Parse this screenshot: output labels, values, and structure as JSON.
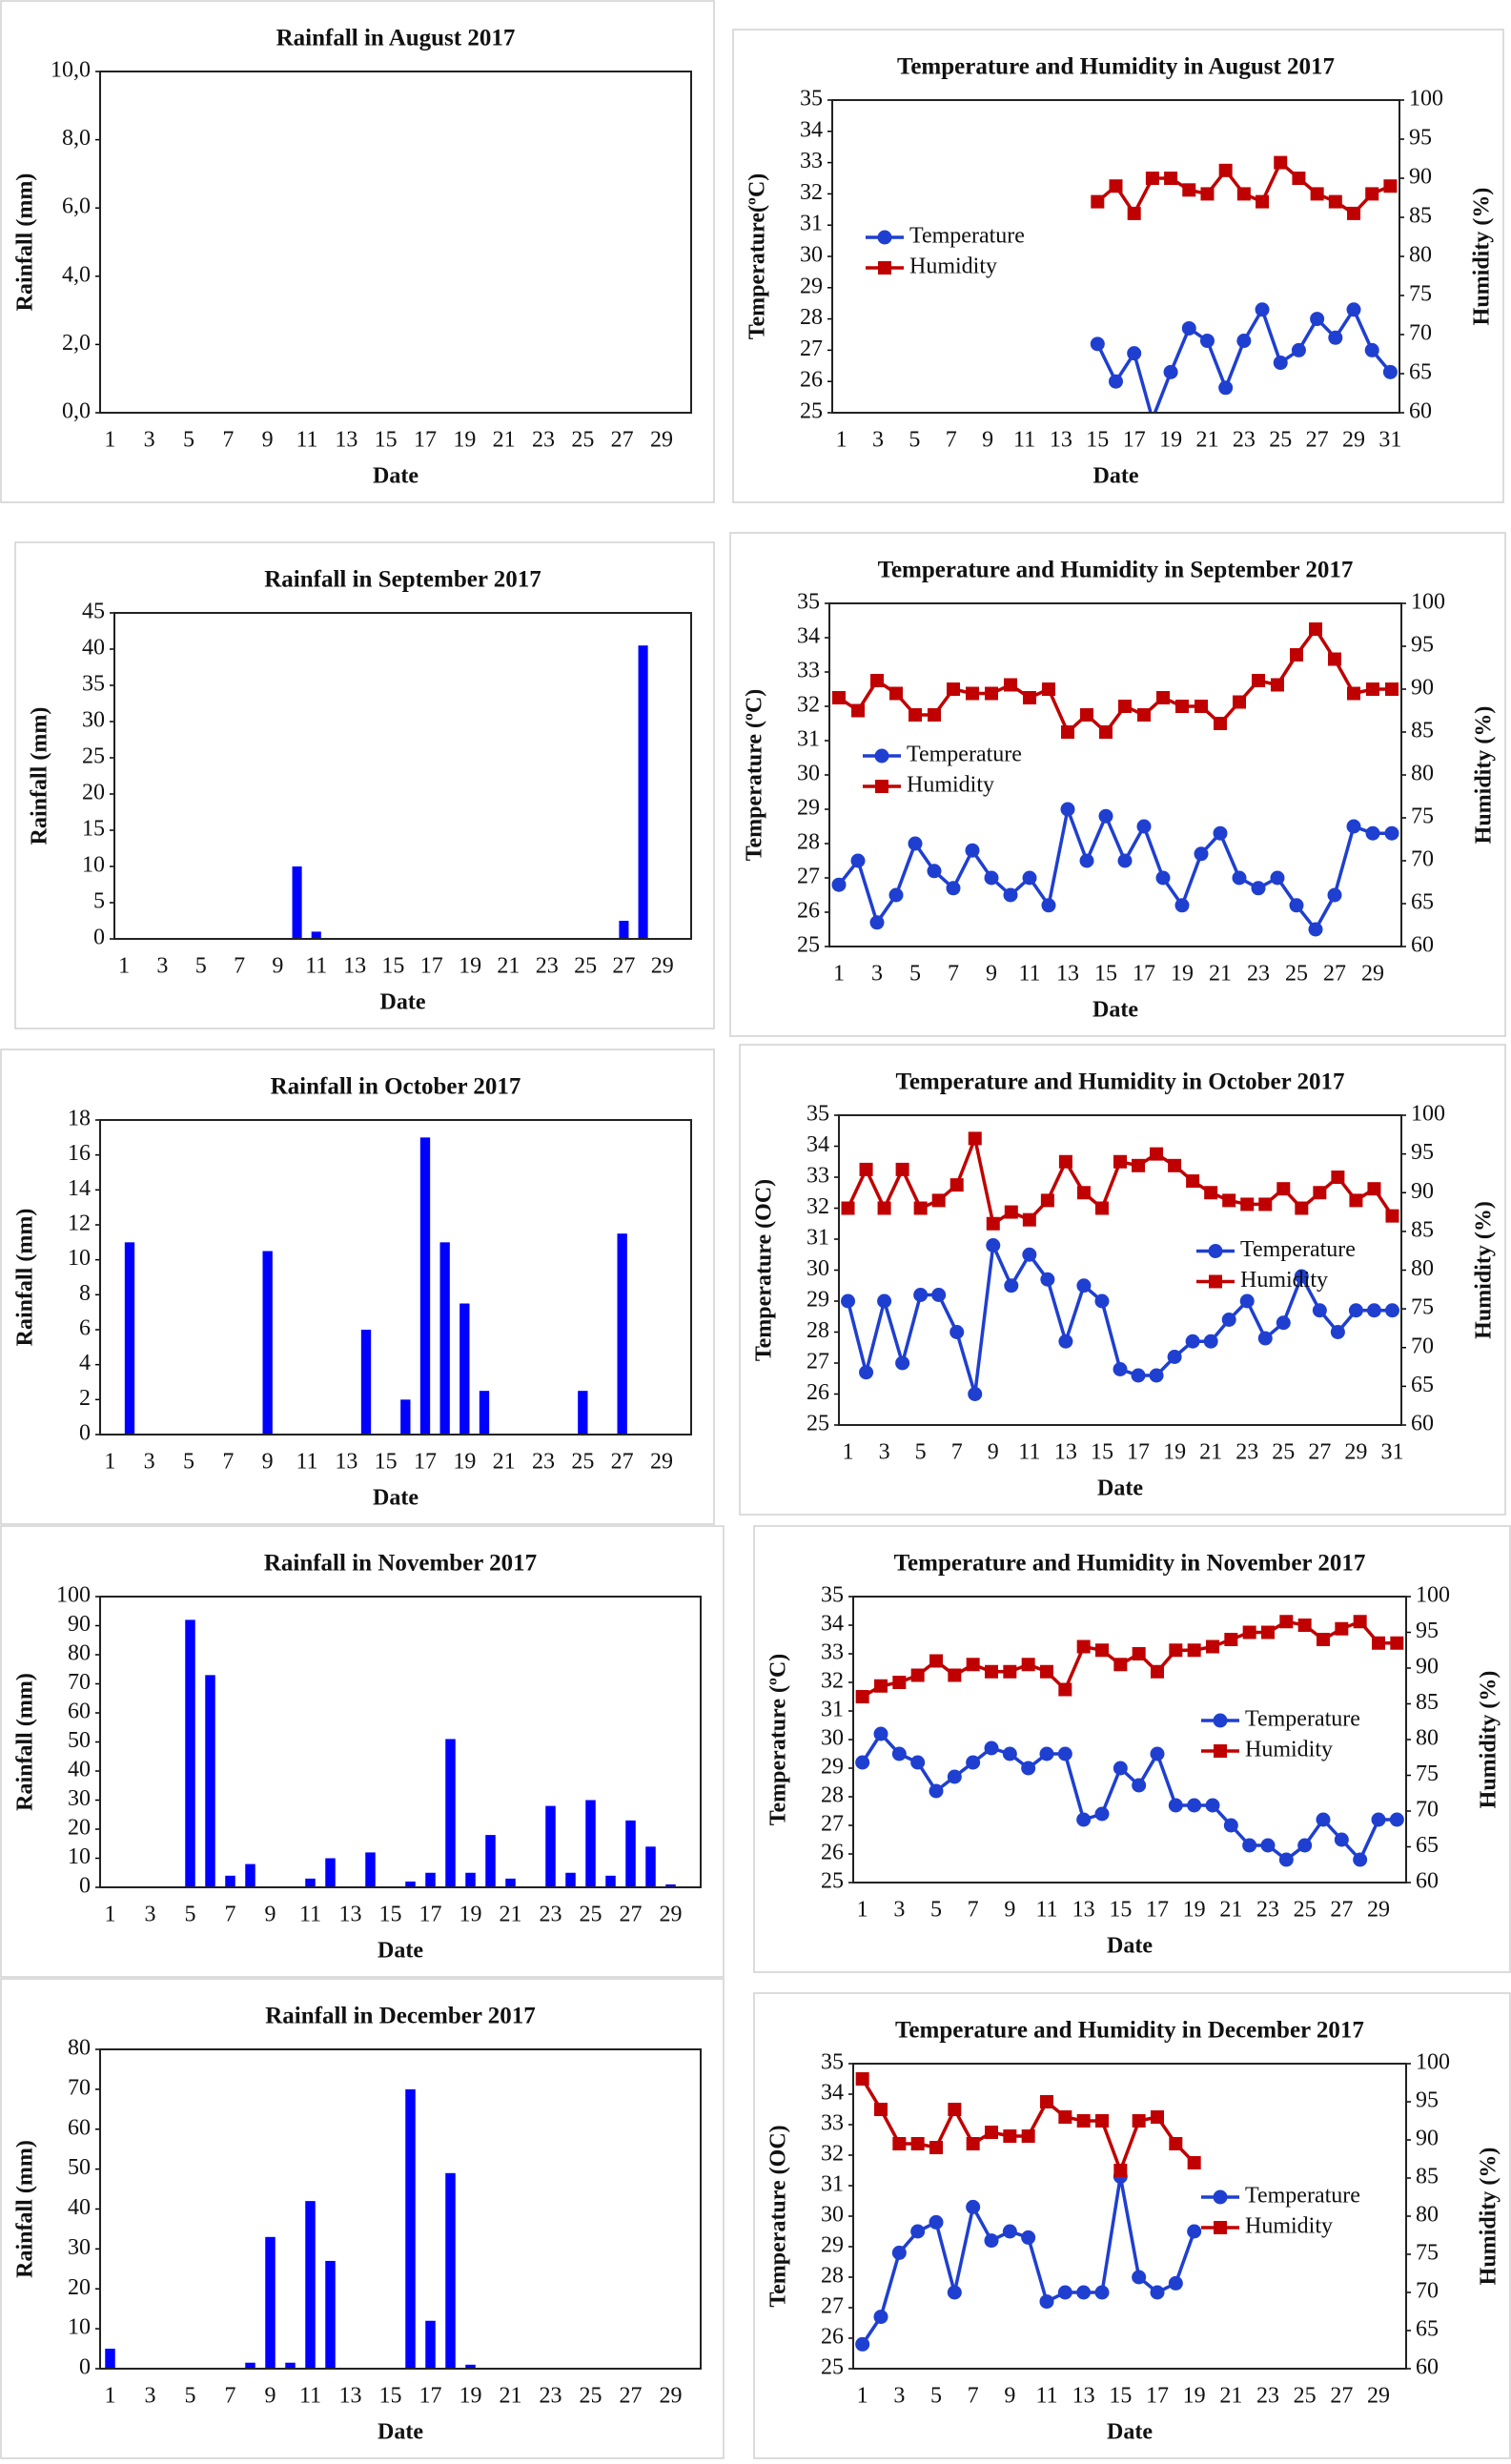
{
  "chart_data": [
    {
      "type": "bar",
      "title": "Rainfall  in August 2017",
      "x_label": "Date",
      "y_label": "Rainfall (mm)",
      "color": "#0000ff",
      "categories": [
        1,
        null,
        3,
        null,
        5,
        null,
        7,
        null,
        9,
        null,
        11,
        null,
        13,
        null,
        15,
        null,
        17,
        null,
        19,
        null,
        21,
        null,
        23,
        null,
        25,
        null,
        27,
        null,
        29,
        null
      ],
      "values": [
        0,
        0,
        0,
        0,
        0,
        0,
        0,
        0,
        0,
        0,
        0,
        0,
        0,
        0,
        0,
        0,
        0,
        0,
        0,
        0,
        0,
        0,
        0,
        0,
        0,
        0,
        0,
        0,
        0,
        0
      ],
      "ylim": [
        0,
        10
      ],
      "yticks": [
        {
          "value": 0,
          "label": "0,0"
        },
        {
          "value": 2,
          "label": "2,0"
        },
        {
          "value": 4,
          "label": "4,0"
        },
        {
          "value": 6,
          "label": "6,0"
        },
        {
          "value": 8,
          "label": "8,0"
        },
        {
          "value": 10,
          "label": "10,0"
        }
      ]
    },
    {
      "type": "line",
      "title": "Temperature and Humidity in August 2017",
      "x_label": "Date",
      "y_label": "Temperature(ºC)",
      "y2_label": "Humidity (%)",
      "legend": "center left",
      "categories": [
        1,
        null,
        3,
        null,
        5,
        null,
        7,
        null,
        9,
        null,
        11,
        null,
        13,
        null,
        15,
        null,
        17,
        null,
        19,
        null,
        21,
        null,
        23,
        null,
        25,
        null,
        27,
        null,
        29,
        null,
        31
      ],
      "series": [
        {
          "name": "Temperature",
          "color": "#1f3fd0",
          "marker": "circle",
          "axis": "y",
          "values": [
            null,
            null,
            null,
            null,
            null,
            null,
            null,
            null,
            null,
            null,
            null,
            null,
            null,
            null,
            27.2,
            26,
            26.9,
            24.8,
            26.3,
            27.7,
            27.3,
            25.8,
            27.3,
            28.3,
            26.6,
            27,
            28,
            27.4,
            28.3,
            27,
            26.3
          ]
        },
        {
          "name": "Humidity",
          "color": "#c00000",
          "marker": "square",
          "axis": "y2",
          "values": [
            null,
            null,
            null,
            null,
            null,
            null,
            null,
            null,
            null,
            null,
            null,
            null,
            null,
            null,
            87,
            89,
            85.5,
            90,
            90,
            88.5,
            88,
            91,
            88,
            87,
            92,
            90,
            88,
            87,
            85.5,
            88,
            89
          ]
        }
      ],
      "ylim": [
        25,
        35
      ],
      "yticks": [
        25,
        26,
        27,
        28,
        29,
        30,
        31,
        32,
        33,
        34,
        35
      ],
      "y2lim": [
        60,
        100
      ],
      "y2ticks": [
        60,
        65,
        70,
        75,
        80,
        85,
        90,
        95,
        100
      ]
    },
    {
      "type": "bar",
      "title": "Rainfall in September 2017",
      "x_label": "Date",
      "y_label": "Rainfall (mm)",
      "color": "#0000ff",
      "categories": [
        1,
        null,
        3,
        null,
        5,
        null,
        7,
        null,
        9,
        null,
        11,
        null,
        13,
        null,
        15,
        null,
        17,
        null,
        19,
        null,
        21,
        null,
        23,
        null,
        25,
        null,
        27,
        null,
        29,
        null
      ],
      "values": [
        0,
        0,
        0,
        0,
        0,
        0,
        0,
        0,
        0,
        10,
        1,
        0,
        0,
        0,
        0,
        0,
        0,
        0,
        0,
        0,
        0,
        0,
        0,
        0,
        0,
        0,
        2.5,
        40.5,
        0,
        0
      ],
      "ylim": [
        0,
        45
      ],
      "yticks": [
        0,
        5,
        10,
        15,
        20,
        25,
        30,
        35,
        40,
        45
      ]
    },
    {
      "type": "line",
      "title": "Temperature and Humidity in September 2017",
      "x_label": "Date",
      "y_label": "Temperature (ºC)",
      "y2_label": "Humidity (%)",
      "legend": "center left",
      "categories": [
        1,
        null,
        3,
        null,
        5,
        null,
        7,
        null,
        9,
        null,
        11,
        null,
        13,
        null,
        15,
        null,
        17,
        null,
        19,
        null,
        21,
        null,
        23,
        null,
        25,
        null,
        27,
        null,
        29,
        null
      ],
      "series": [
        {
          "name": "Temperature",
          "color": "#1f3fd0",
          "marker": "circle",
          "axis": "y",
          "values": [
            26.8,
            27.5,
            25.7,
            26.5,
            28,
            27.2,
            26.7,
            27.8,
            27,
            26.5,
            27,
            26.2,
            29,
            27.5,
            28.8,
            27.5,
            28.5,
            27,
            26.2,
            27.7,
            28.3,
            27,
            26.7,
            27,
            26.2,
            25.5,
            26.5,
            28.5,
            28.3,
            28.3
          ]
        },
        {
          "name": "Humidity",
          "color": "#c00000",
          "marker": "square",
          "axis": "y2",
          "values": [
            89,
            87.5,
            91,
            89.5,
            87,
            87,
            90,
            89.5,
            89.5,
            90.5,
            89,
            90,
            85,
            87,
            85,
            88,
            87,
            89,
            88,
            88,
            86,
            88.5,
            91,
            90.5,
            94,
            97,
            93.5,
            89.5,
            90,
            90
          ]
        }
      ],
      "ylim": [
        25,
        35
      ],
      "yticks": [
        25,
        26,
        27,
        28,
        29,
        30,
        31,
        32,
        33,
        34,
        35
      ],
      "y2lim": [
        60,
        100
      ],
      "y2ticks": [
        60,
        65,
        70,
        75,
        80,
        85,
        90,
        95,
        100
      ]
    },
    {
      "type": "bar",
      "title": "Rainfall in October 2017",
      "x_label": "Date",
      "y_label": "Rainfall (mm)",
      "color": "#0000ff",
      "categories": [
        1,
        null,
        3,
        null,
        5,
        null,
        7,
        null,
        9,
        null,
        11,
        null,
        13,
        null,
        15,
        null,
        17,
        null,
        19,
        null,
        21,
        null,
        23,
        null,
        25,
        null,
        27,
        null,
        29,
        null
      ],
      "values": [
        0,
        11,
        0,
        0,
        0,
        0,
        0,
        0,
        10.5,
        0,
        0,
        0,
        0,
        6,
        0,
        2,
        17,
        11,
        7.5,
        2.5,
        0,
        0,
        0,
        0,
        2.5,
        0,
        11.5,
        0,
        0,
        0
      ],
      "ylim": [
        0,
        18
      ],
      "yticks": [
        0,
        2,
        4,
        6,
        8,
        10,
        12,
        14,
        16,
        18
      ]
    },
    {
      "type": "line",
      "title": "Temperature and Humidity in October 2017",
      "x_label": "Date",
      "y_label": "Temperature (OC)",
      "y2_label": "Humidity (%)",
      "legend": "center right",
      "categories": [
        1,
        null,
        3,
        null,
        5,
        null,
        7,
        null,
        9,
        null,
        11,
        null,
        13,
        null,
        15,
        null,
        17,
        null,
        19,
        null,
        21,
        null,
        23,
        null,
        25,
        null,
        27,
        null,
        29,
        null,
        31
      ],
      "series": [
        {
          "name": "Temperature",
          "color": "#1f3fd0",
          "marker": "circle",
          "axis": "y",
          "values": [
            29,
            26.7,
            29,
            27,
            29.2,
            29.2,
            28,
            26,
            30.8,
            29.5,
            30.5,
            29.7,
            27.7,
            29.5,
            29,
            26.8,
            26.6,
            26.6,
            27.2,
            27.7,
            27.7,
            28.4,
            29,
            27.8,
            28.3,
            29.8,
            28.7,
            28,
            28.7,
            28.7,
            28.7
          ]
        },
        {
          "name": "Humidity",
          "color": "#c00000",
          "marker": "square",
          "axis": "y2",
          "values": [
            88,
            93,
            88,
            93,
            88,
            89,
            91,
            97,
            86,
            87.5,
            86.5,
            89,
            94,
            90,
            88,
            94,
            93.5,
            95,
            93.5,
            91.5,
            90,
            89,
            88.5,
            88.5,
            90.5,
            88,
            90,
            92,
            89,
            90.5,
            87
          ]
        }
      ],
      "ylim": [
        25,
        35
      ],
      "yticks": [
        25,
        26,
        27,
        28,
        29,
        30,
        31,
        32,
        33,
        34,
        35
      ],
      "y2lim": [
        60,
        100
      ],
      "y2ticks": [
        60,
        65,
        70,
        75,
        80,
        85,
        90,
        95,
        100
      ]
    },
    {
      "type": "bar",
      "title": "Rainfall in November 2017",
      "x_label": "Date",
      "y_label": "Rainfall (mm)",
      "color": "#0000ff",
      "categories": [
        1,
        null,
        3,
        null,
        5,
        null,
        7,
        null,
        9,
        null,
        11,
        null,
        13,
        null,
        15,
        null,
        17,
        null,
        19,
        null,
        21,
        null,
        23,
        null,
        25,
        null,
        27,
        null,
        29,
        null
      ],
      "values": [
        0,
        0,
        0,
        0,
        92,
        73,
        4,
        8,
        0,
        0,
        3,
        10,
        0,
        12,
        0,
        2,
        5,
        51,
        5,
        18,
        3,
        0,
        28,
        5,
        30,
        4,
        23,
        14,
        1,
        0
      ],
      "ylim": [
        0,
        100
      ],
      "yticks": [
        0,
        10,
        20,
        30,
        40,
        50,
        60,
        70,
        80,
        90,
        100
      ]
    },
    {
      "type": "line",
      "title": "Temperature and Humidity  in November 2017",
      "x_label": "Date",
      "y_label": "Temperature (ºC)",
      "y2_label": "Humidity (%)",
      "legend": "center right",
      "categories": [
        1,
        null,
        3,
        null,
        5,
        null,
        7,
        null,
        9,
        null,
        11,
        null,
        13,
        null,
        15,
        null,
        17,
        null,
        19,
        null,
        21,
        null,
        23,
        null,
        25,
        null,
        27,
        null,
        29,
        null
      ],
      "series": [
        {
          "name": "Temperature",
          "color": "#1f3fd0",
          "marker": "circle",
          "axis": "y",
          "values": [
            29.2,
            30.2,
            29.5,
            29.2,
            28.2,
            28.7,
            29.2,
            29.7,
            29.5,
            29,
            29.5,
            29.5,
            27.2,
            27.4,
            29,
            28.4,
            29.5,
            27.7,
            27.7,
            27.7,
            27,
            26.3,
            26.3,
            25.8,
            26.3,
            27.2,
            26.5,
            25.8,
            27.2,
            27.2
          ]
        },
        {
          "name": "Humidity",
          "color": "#c00000",
          "marker": "square",
          "axis": "y2",
          "values": [
            86,
            87.5,
            88,
            89,
            91,
            89,
            90.5,
            89.5,
            89.5,
            90.5,
            89.5,
            87,
            93,
            92.5,
            90.5,
            92,
            89.5,
            92.5,
            92.5,
            93,
            94,
            95,
            95,
            96.5,
            96,
            94,
            95.5,
            96.5,
            93.5,
            93.5
          ]
        }
      ],
      "ylim": [
        25,
        35
      ],
      "yticks": [
        25,
        26,
        27,
        28,
        29,
        30,
        31,
        32,
        33,
        34,
        35
      ],
      "y2lim": [
        60,
        100
      ],
      "y2ticks": [
        60,
        65,
        70,
        75,
        80,
        85,
        90,
        95,
        100
      ]
    },
    {
      "type": "bar",
      "title": "Rainfall in December 2017",
      "x_label": "Date",
      "y_label": "Rainfall (mm)",
      "color": "#0000ff",
      "categories": [
        1,
        null,
        3,
        null,
        5,
        null,
        7,
        null,
        9,
        null,
        11,
        null,
        13,
        null,
        15,
        null,
        17,
        null,
        19,
        null,
        21,
        null,
        23,
        null,
        25,
        null,
        27,
        null,
        29,
        null
      ],
      "values": [
        5,
        0,
        0,
        0,
        0,
        0,
        0,
        1.5,
        33,
        1.5,
        42,
        27,
        0,
        0,
        0,
        70,
        12,
        49,
        1,
        0,
        0,
        0,
        0,
        0,
        0,
        0,
        0,
        0,
        0,
        0
      ],
      "ylim": [
        0,
        80
      ],
      "yticks": [
        0,
        10,
        20,
        30,
        40,
        50,
        60,
        70,
        80
      ]
    },
    {
      "type": "line",
      "title": "Temperature and Humidity in December 2017",
      "x_label": "Date",
      "y_label": "Temperature (OC)",
      "y2_label": "Humidity (%)",
      "legend": "center right",
      "categories": [
        1,
        null,
        3,
        null,
        5,
        null,
        7,
        null,
        9,
        null,
        11,
        null,
        13,
        null,
        15,
        null,
        17,
        null,
        19,
        null,
        21,
        null,
        23,
        null,
        25,
        null,
        27,
        null,
        29,
        null
      ],
      "series": [
        {
          "name": "Temperature",
          "color": "#1f3fd0",
          "marker": "circle",
          "axis": "y",
          "values": [
            25.8,
            26.7,
            28.8,
            29.5,
            29.8,
            27.5,
            30.3,
            29.2,
            29.5,
            29.3,
            27.2,
            27.5,
            27.5,
            27.5,
            31.3,
            28,
            27.5,
            27.8,
            29.5,
            null,
            null,
            null,
            null,
            null,
            null,
            null,
            null,
            null,
            null,
            null
          ]
        },
        {
          "name": "Humidity",
          "color": "#c00000",
          "marker": "square",
          "axis": "y2",
          "values": [
            98,
            94,
            89.5,
            89.5,
            89,
            94,
            89.5,
            91,
            90.5,
            90.5,
            95,
            93,
            92.5,
            92.5,
            86,
            92.5,
            93,
            89.5,
            87,
            null,
            null,
            null,
            null,
            null,
            null,
            null,
            null,
            null,
            null,
            null
          ]
        }
      ],
      "ylim": [
        25,
        35
      ],
      "yticks": [
        25,
        26,
        27,
        28,
        29,
        30,
        31,
        32,
        33,
        34,
        35
      ],
      "y2lim": [
        60,
        100
      ],
      "y2ticks": [
        60,
        65,
        70,
        75,
        80,
        85,
        90,
        95,
        100
      ]
    }
  ]
}
